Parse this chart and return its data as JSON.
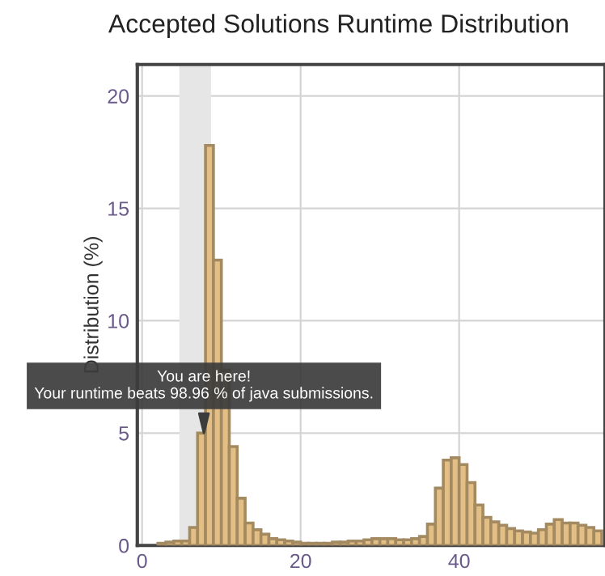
{
  "chart_data": {
    "type": "histogram",
    "title": "Accepted Solutions Runtime Distribution",
    "ylabel": "Distribution (%)",
    "bins": [
      2,
      3,
      4,
      5,
      6,
      7,
      8,
      9,
      10,
      11,
      12,
      13,
      14,
      15,
      16,
      17,
      18,
      19,
      20,
      21,
      22,
      23,
      24,
      25,
      26,
      27,
      28,
      29,
      30,
      31,
      32,
      33,
      34,
      35,
      36,
      37,
      38,
      39,
      40,
      41,
      42,
      43,
      44,
      45,
      46,
      47,
      48,
      49,
      50,
      51,
      52,
      53,
      54,
      55,
      56,
      57,
      58
    ],
    "values": [
      0.1,
      0.15,
      0.2,
      0.2,
      0.8,
      5.0,
      17.8,
      12.7,
      7.8,
      4.4,
      2.1,
      1.0,
      0.7,
      0.5,
      0.3,
      0.25,
      0.2,
      0.15,
      0.1,
      0.1,
      0.1,
      0.1,
      0.15,
      0.15,
      0.2,
      0.2,
      0.25,
      0.3,
      0.3,
      0.3,
      0.25,
      0.25,
      0.3,
      0.4,
      0.95,
      2.55,
      3.8,
      3.9,
      3.6,
      2.8,
      1.8,
      1.25,
      1.05,
      0.9,
      0.75,
      0.65,
      0.6,
      0.55,
      0.7,
      0.95,
      1.15,
      1.0,
      1.0,
      0.9,
      0.8,
      0.65
    ],
    "color": "#e3bf85",
    "xlim": [
      -0.6,
      58.4
    ],
    "ylim": [
      0,
      21.4
    ],
    "xticks": [
      0,
      20,
      40
    ],
    "yticks": [
      0,
      5,
      10,
      15,
      20
    ],
    "grid": true,
    "bands": [
      {
        "axis": "x",
        "from": 4.7,
        "to": 8.7,
        "color": "#e6e6e6"
      }
    ],
    "annotations": [
      {
        "text": "You are here!\nYour runtime beats 98.96 % of java submissions.",
        "x": 7.8,
        "y": 4.8
      }
    ]
  }
}
